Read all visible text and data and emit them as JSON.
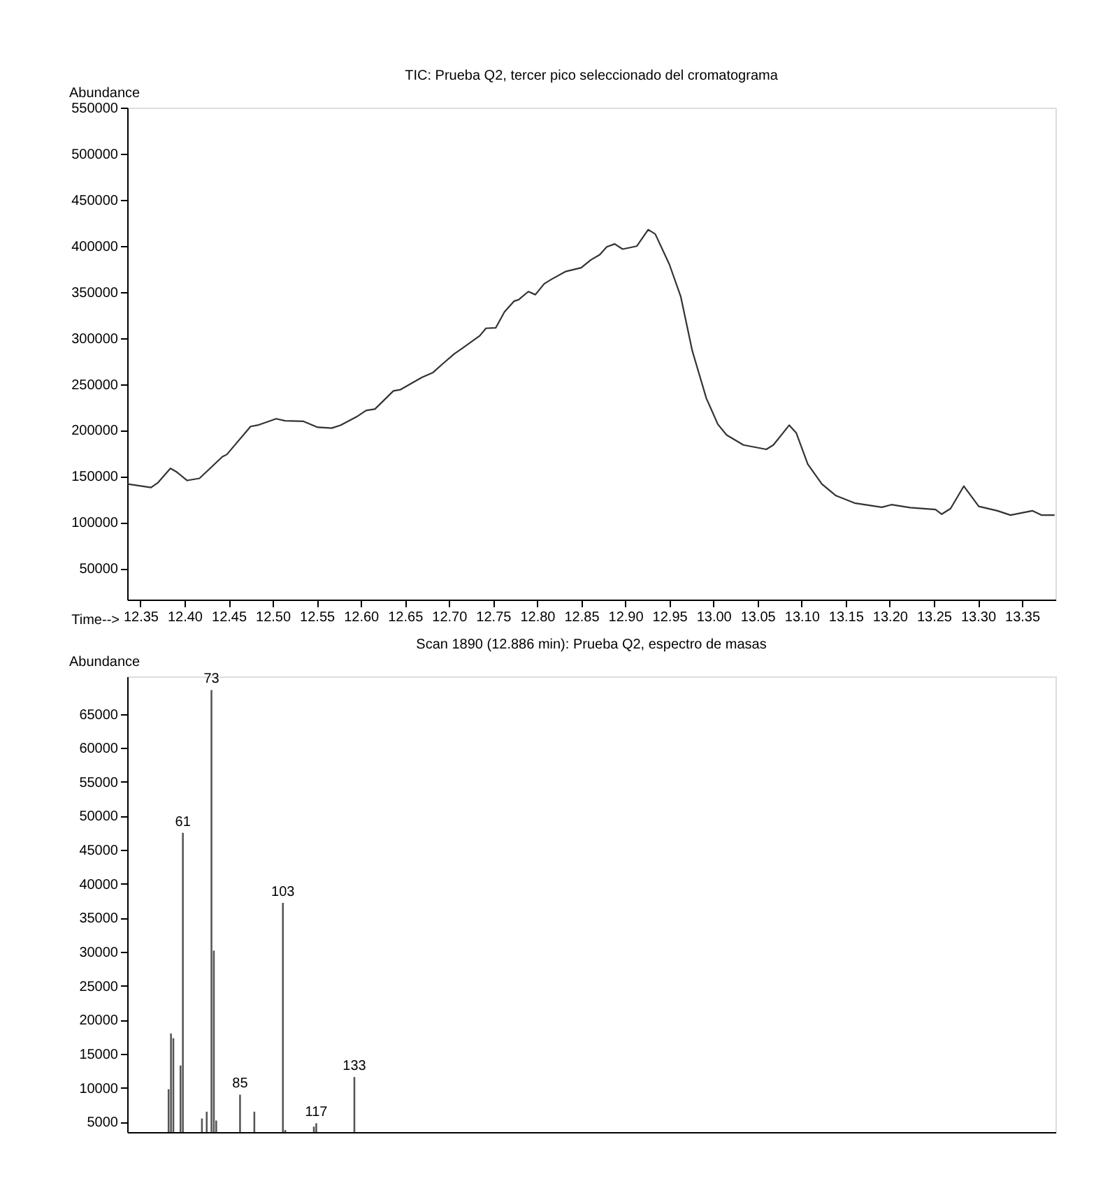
{
  "chart_data": [
    {
      "type": "line",
      "title": "TIC: Prueba Q2, tercer pico seleccionado del cromatograma",
      "xlabel": "Time-->",
      "ylabel": "Abundance",
      "x": [
        12.3355,
        12.362,
        12.37,
        12.384,
        12.391,
        12.403,
        12.417,
        12.443,
        12.448,
        12.475,
        12.483,
        12.504,
        12.514,
        12.535,
        12.551,
        12.567,
        12.577,
        12.595,
        12.606,
        12.616,
        12.637,
        12.645,
        12.669,
        12.682,
        12.693,
        12.706,
        12.716,
        12.735,
        12.742,
        12.753,
        12.763,
        12.774,
        12.779,
        12.79,
        12.798,
        12.808,
        12.816,
        12.832,
        12.85,
        12.861,
        12.871,
        12.879,
        12.888,
        12.897,
        12.913,
        12.926,
        12.934,
        12.95,
        12.963,
        12.976,
        12.992,
        13.005,
        13.015,
        13.034,
        13.06,
        13.068,
        13.086,
        13.094,
        13.107,
        13.123,
        13.139,
        13.16,
        13.191,
        13.202,
        13.223,
        13.252,
        13.259,
        13.269,
        13.284,
        13.301,
        13.322,
        13.337,
        13.362,
        13.372,
        13.387
      ],
      "series": [
        {
          "color": "#333333",
          "values": [
            141500,
            137700,
            143000,
            158400,
            154600,
            145300,
            147600,
            171100,
            173500,
            203900,
            205300,
            212300,
            210100,
            209500,
            203000,
            202100,
            205300,
            214300,
            221300,
            222800,
            242500,
            243900,
            257000,
            262600,
            272000,
            282700,
            289400,
            302400,
            310500,
            310900,
            328300,
            340000,
            341500,
            350300,
            347000,
            358800,
            363500,
            372000,
            376200,
            384700,
            390300,
            398800,
            402000,
            396400,
            399600,
            417500,
            412800,
            379900,
            344700,
            286100,
            234400,
            206300,
            194600,
            183800,
            179100,
            183800,
            205300,
            196900,
            163100,
            141500,
            128800,
            120800,
            116200,
            119000,
            115800,
            113800,
            108700,
            114800,
            139100,
            117200,
            112400,
            107700,
            112400,
            107700,
            107700
          ]
        }
      ],
      "xlim": [
        12.335,
        13.388
      ],
      "ylim": [
        16000,
        550000
      ],
      "xticks": [
        {
          "value": 12.35,
          "label": "12.35"
        },
        {
          "value": 12.4,
          "label": "12.40"
        },
        {
          "value": 12.45,
          "label": "12.45"
        },
        {
          "value": 12.5,
          "label": "12.50"
        },
        {
          "value": 12.55,
          "label": "12.55"
        },
        {
          "value": 12.6,
          "label": "12.60"
        },
        {
          "value": 12.65,
          "label": "12.65"
        },
        {
          "value": 12.7,
          "label": "12.70"
        },
        {
          "value": 12.75,
          "label": "12.75"
        },
        {
          "value": 12.8,
          "label": "12.80"
        },
        {
          "value": 12.85,
          "label": "12.85"
        },
        {
          "value": 12.9,
          "label": "12.90"
        },
        {
          "value": 12.95,
          "label": "12.95"
        },
        {
          "value": 13.0,
          "label": "13.00"
        },
        {
          "value": 13.05,
          "label": "13.05"
        },
        {
          "value": 13.1,
          "label": "13.10"
        },
        {
          "value": 13.15,
          "label": "13.15"
        },
        {
          "value": 13.2,
          "label": "13.20"
        },
        {
          "value": 13.25,
          "label": "13.25"
        },
        {
          "value": 13.3,
          "label": "13.30"
        },
        {
          "value": 13.35,
          "label": "13.35"
        }
      ],
      "yticks": [
        50000,
        100000,
        150000,
        200000,
        250000,
        300000,
        350000,
        400000,
        450000,
        500000,
        550000
      ],
      "grid": false
    },
    {
      "type": "bar",
      "title": "Scan 1890 (12.886 min): Prueba Q2, espectro de masas",
      "ylabel": "Abundance",
      "categories": [
        null,
        null,
        null,
        null,
        null,
        null,
        null,
        null,
        null,
        null,
        null,
        null,
        null,
        null,
        null,
        null,
        null,
        null,
        null,
        null,
        null,
        null,
        null,
        null,
        null,
        null,
        null,
        null,
        null,
        null,
        null,
        null,
        null,
        null,
        null,
        null,
        null,
        null,
        null,
        null,
        null,
        null,
        null,
        null,
        null,
        null,
        null,
        null,
        null,
        null,
        null,
        null,
        null,
        null,
        null,
        null,
        null,
        null,
        null,
        null,
        null,
        null,
        null,
        null,
        null,
        null,
        null,
        null,
        null,
        null,
        null,
        null,
        null,
        null,
        null,
        null,
        null,
        null,
        null,
        null,
        null,
        null,
        null,
        null,
        null,
        null,
        null,
        null,
        null,
        null,
        null,
        null,
        null,
        null,
        null,
        null,
        null,
        null,
        null,
        null,
        null,
        null,
        null,
        null,
        null,
        null,
        null,
        null,
        null,
        null,
        null,
        null,
        null,
        null,
        null,
        null,
        null,
        null,
        null,
        null,
        null,
        null,
        null,
        null,
        null,
        null,
        null,
        null,
        null,
        null,
        null,
        null,
        null,
        null,
        null,
        null,
        null,
        null,
        null,
        null,
        null,
        null,
        null,
        null,
        null,
        null,
        null,
        null,
        null,
        null,
        null,
        null,
        null,
        null,
        null,
        null,
        null,
        null,
        null,
        null,
        null,
        null,
        null,
        null,
        null,
        null,
        null,
        null,
        null,
        null,
        null,
        null,
        null,
        null,
        null,
        null,
        null,
        null,
        null,
        null,
        null,
        null,
        null,
        null,
        null,
        null,
        null,
        null,
        null,
        null,
        null,
        null,
        null,
        null,
        null,
        null,
        null,
        null,
        null,
        null,
        null,
        null,
        null,
        null,
        null,
        null,
        null,
        null,
        null,
        null,
        null,
        null,
        null,
        null,
        null,
        null,
        null,
        null,
        null,
        null,
        null,
        null,
        null,
        null,
        null,
        null,
        null,
        null,
        null,
        null,
        null,
        null,
        null,
        null,
        null,
        null,
        null,
        null,
        null,
        null,
        null,
        null,
        null,
        null,
        null,
        null,
        null,
        null,
        null,
        null,
        null,
        null,
        null,
        null,
        null,
        null,
        null,
        null,
        null,
        null,
        null,
        null,
        null,
        null,
        null,
        null,
        null,
        null,
        null,
        null,
        null,
        null,
        null,
        null,
        null,
        null,
        null,
        null,
        null,
        null,
        null,
        null,
        null,
        null,
        null,
        null,
        null,
        null,
        null,
        null,
        null,
        null,
        null,
        null,
        null,
        null,
        null,
        null,
        null,
        null,
        null,
        null,
        null,
        null,
        null,
        null,
        null,
        null,
        null,
        null,
        null,
        null,
        null,
        null,
        null,
        null,
        null,
        null,
        null,
        null,
        null,
        null,
        null,
        null,
        null,
        null,
        null,
        null,
        null,
        null,
        null,
        null,
        null,
        null,
        null,
        null,
        null,
        null,
        null,
        null,
        null,
        null,
        null,
        null,
        null,
        null,
        null,
        null,
        null,
        null,
        null,
        null,
        null,
        null,
        null,
        null,
        null,
        null,
        null,
        null,
        null,
        null,
        null,
        null,
        null,
        null,
        null,
        null,
        null,
        null,
        null,
        null,
        null,
        null,
        null,
        null,
        null,
        null,
        null,
        null,
        null,
        null,
        null,
        null,
        null,
        null,
        null,
        null,
        null,
        null
      ],
      "series": [
        {
          "color": "#555555",
          "values": [
            null,
            null,
            null,
            null,
            null,
            null,
            null,
            null,
            null,
            null,
            null,
            null,
            null,
            null,
            null,
            null,
            null,
            9800,
            18000,
            17300,
            null,
            null,
            13300,
            47500,
            null,
            null,
            null,
            null,
            null,
            null,
            null,
            5500,
            null,
            6500,
            null,
            68500,
            30200,
            5200,
            null,
            null,
            null,
            null,
            null,
            null,
            null,
            null,
            null,
            9000,
            null,
            null,
            null,
            null,
            null,
            6500,
            null,
            null,
            null,
            null,
            null,
            null,
            null,
            null,
            null,
            null,
            null,
            37200,
            3800,
            null,
            null,
            null,
            null,
            null,
            null,
            null,
            null,
            null,
            null,
            null,
            4300,
            4800,
            null,
            null,
            null,
            null,
            null,
            null,
            null,
            null,
            null,
            null,
            null,
            null,
            null,
            null,
            null,
            11600,
            null,
            null,
            null,
            null,
            null,
            null,
            null,
            null,
            null,
            null,
            null,
            null,
            null,
            null,
            null,
            null,
            null,
            null,
            null,
            null,
            null,
            null,
            null,
            null,
            null,
            null,
            null,
            null,
            null,
            null,
            null,
            null,
            null,
            null,
            null,
            null,
            null,
            null,
            null,
            null,
            null,
            null,
            null,
            null,
            null,
            null,
            null,
            null,
            null,
            null,
            null,
            null,
            null,
            null,
            null,
            null,
            null,
            null,
            null,
            null,
            null,
            null,
            null,
            null,
            null,
            null,
            null,
            null,
            null,
            null,
            null,
            null,
            null,
            null,
            null,
            null,
            null,
            null,
            null,
            null,
            null,
            null,
            null,
            null,
            null,
            null,
            null,
            null,
            null,
            null,
            null,
            null,
            null,
            null,
            null,
            null,
            null,
            null,
            null,
            null,
            null,
            null,
            null,
            null,
            null,
            null,
            null,
            null,
            null,
            null,
            null,
            null,
            null,
            null,
            null,
            null,
            null,
            null,
            null,
            null,
            null,
            null,
            null,
            null,
            null,
            null,
            null,
            null,
            null,
            null,
            null,
            null,
            null,
            null,
            null,
            null,
            null,
            null,
            null,
            null,
            null,
            null,
            null,
            null,
            null,
            null,
            null,
            null,
            null,
            null,
            null,
            null,
            null,
            null,
            null,
            null,
            null,
            null,
            null,
            null,
            null,
            null,
            null,
            null,
            null,
            null,
            null,
            null,
            null,
            null,
            null,
            null,
            null,
            null,
            null,
            null,
            null,
            null,
            null,
            null,
            null,
            null,
            null,
            null,
            null,
            null,
            null,
            null,
            null,
            null,
            null,
            null,
            null,
            null,
            null,
            null,
            null,
            null,
            null,
            null,
            null,
            null,
            null,
            null,
            null,
            null,
            null,
            null,
            null,
            null,
            null,
            null,
            null,
            null,
            null,
            null,
            null,
            null,
            null,
            null,
            null,
            null,
            null,
            null,
            null,
            null,
            null,
            null,
            null,
            null,
            null,
            null,
            null,
            null,
            null,
            null,
            null,
            null,
            null,
            null,
            null,
            null,
            null,
            null,
            null,
            null,
            null,
            null,
            null,
            null,
            null,
            null,
            null,
            null,
            null,
            null,
            null,
            null,
            null,
            null,
            null,
            null,
            null,
            null,
            null,
            null,
            null,
            null,
            null,
            null,
            null,
            null,
            null,
            null,
            null,
            null,
            null,
            null,
            null,
            null,
            null,
            null,
            null,
            null,
            null,
            null,
            null,
            null,
            null,
            null,
            null,
            null,
            null,
            null
          ]
        }
      ],
      "value_labels": [
        null,
        null,
        null,
        null,
        null,
        null,
        null,
        null,
        null,
        null,
        null,
        null,
        null,
        null,
        null,
        null,
        null,
        null,
        null,
        null,
        null,
        null,
        null,
        "61",
        null,
        null,
        null,
        null,
        null,
        null,
        null,
        null,
        null,
        null,
        null,
        "73",
        null,
        null,
        null,
        null,
        null,
        null,
        null,
        null,
        null,
        null,
        null,
        "85",
        null,
        null,
        null,
        null,
        null,
        null,
        null,
        null,
        null,
        null,
        null,
        null,
        null,
        null,
        null,
        null,
        null,
        "103",
        null,
        null,
        null,
        null,
        null,
        null,
        null,
        null,
        null,
        null,
        null,
        null,
        null,
        "117",
        null,
        null,
        null,
        null,
        null,
        null,
        null,
        null,
        null,
        null,
        null,
        null,
        null,
        null,
        null,
        "133",
        null,
        null,
        null,
        null,
        null,
        null,
        null,
        null,
        null,
        null,
        null,
        null,
        null,
        null,
        null,
        null,
        null,
        null,
        null,
        null,
        null,
        null,
        null,
        null,
        null,
        null,
        null,
        null,
        null,
        null,
        null,
        null,
        null,
        null,
        null,
        null,
        null,
        null,
        null,
        null,
        null,
        null,
        null,
        null,
        null,
        null,
        null,
        null,
        null,
        null,
        null,
        null,
        null,
        null,
        null,
        null,
        null,
        null,
        null,
        null,
        null,
        null,
        null,
        null,
        null,
        null,
        null,
        null,
        null,
        null,
        null,
        null,
        null,
        null,
        null,
        null,
        null,
        null,
        null,
        null,
        null,
        null,
        null,
        null,
        null,
        null,
        null,
        null,
        null,
        null,
        null,
        null,
        null,
        null,
        null,
        null,
        null,
        null,
        null,
        null,
        null,
        null,
        null,
        null,
        null,
        null,
        null,
        null,
        null,
        null,
        null,
        null,
        null,
        null,
        null,
        null,
        null,
        null,
        null,
        null,
        null,
        null,
        null,
        null,
        null,
        null,
        null,
        null,
        null,
        null,
        null,
        null,
        null,
        null,
        null,
        null,
        null,
        null,
        null,
        null,
        null,
        null,
        null,
        null,
        null,
        null,
        null,
        null,
        null,
        null,
        null,
        null,
        null,
        null,
        null,
        null,
        null,
        null,
        null,
        null,
        null,
        null,
        null,
        null,
        null,
        null,
        null,
        null,
        null,
        null,
        null,
        null,
        null,
        null,
        null,
        null,
        null,
        null,
        null,
        null,
        null,
        null,
        null,
        null,
        null,
        null,
        null,
        null,
        null,
        null,
        null,
        null,
        null,
        null,
        null,
        null,
        null,
        null,
        null,
        null,
        null,
        null,
        null,
        null,
        null,
        null,
        null,
        null,
        null,
        null,
        null,
        null,
        null,
        null,
        null,
        null,
        null,
        null,
        null,
        null,
        null,
        null,
        null,
        null,
        null,
        null,
        null,
        null,
        null,
        null,
        null,
        null,
        null,
        null,
        null,
        null,
        null,
        null,
        null,
        null,
        null,
        null,
        null,
        null,
        null,
        null,
        null,
        null,
        null,
        null,
        null,
        null,
        null,
        null,
        null,
        null,
        null,
        null,
        null,
        null,
        null,
        null,
        null,
        null,
        null,
        null,
        null,
        null,
        null,
        null,
        null,
        null,
        null,
        null,
        null,
        null,
        null,
        null,
        null,
        null,
        null,
        null,
        null,
        null,
        null,
        null,
        null,
        null,
        null,
        null,
        null,
        null,
        null,
        null
      ],
      "ylim": [
        3500,
        70500
      ],
      "yticks": [
        5000,
        10000,
        15000,
        20000,
        25000,
        30000,
        35000,
        40000,
        45000,
        50000,
        55000,
        60000,
        65000
      ],
      "tick_labels": "y",
      "grid": false
    }
  ]
}
